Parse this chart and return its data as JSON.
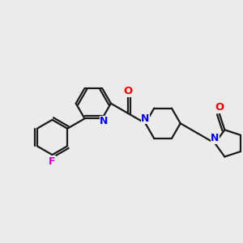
{
  "background_color": "#ebebeb",
  "bond_color": "#1a1a1a",
  "nitrogen_color": "#0000ee",
  "oxygen_color": "#ee0000",
  "fluorine_color": "#cc00cc",
  "line_width": 1.6,
  "figsize": [
    3.0,
    3.0
  ],
  "dpi": 100,
  "xlim": [
    0,
    10
  ],
  "ylim": [
    0,
    10
  ]
}
